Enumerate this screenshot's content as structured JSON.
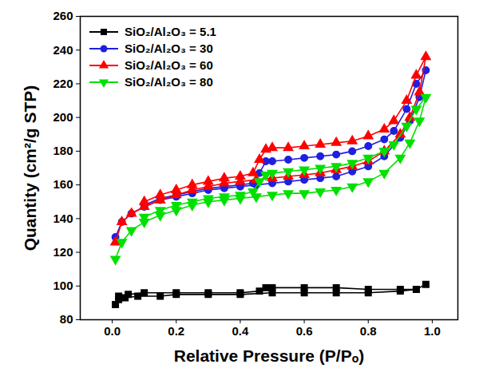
{
  "chart_data": {
    "type": "line",
    "x_label": "Relative Pressure (P/Pₒ)",
    "y_label": "Quantity (cm²/g STP)",
    "xlim": [
      -0.1,
      1.08
    ],
    "ylim": [
      80,
      260
    ],
    "xticks": [
      {
        "value": 0,
        "label": "0.0"
      },
      {
        "value": 0.2,
        "label": "0.2"
      },
      {
        "value": 0.4,
        "label": "0.4"
      },
      {
        "value": 0.6,
        "label": "0.6"
      },
      {
        "value": 0.8,
        "label": "0.8"
      },
      {
        "value": 1,
        "label": "1.0"
      }
    ],
    "yticks": [
      80,
      100,
      120,
      140,
      160,
      180,
      200,
      220,
      240,
      260
    ],
    "legend": "top-left",
    "series": [
      {
        "name": "SiO₂/Al₂O₃ = 5.1",
        "color": "#000000",
        "marker": "square",
        "line_style": "solid",
        "x": [
          0.01,
          0.02,
          0.04,
          0.08,
          0.15,
          0.2,
          0.3,
          0.4,
          0.5,
          0.6,
          0.7,
          0.8,
          0.9,
          0.95,
          0.98,
          0.95,
          0.9,
          0.8,
          0.7,
          0.6,
          0.5,
          0.48,
          0.46,
          0.4,
          0.3,
          0.2,
          0.1,
          0.05,
          0.02
        ],
        "values": [
          89,
          92,
          93,
          94,
          94,
          95,
          95,
          95,
          96,
          96,
          96,
          96,
          97,
          98,
          101,
          98,
          98,
          98,
          99,
          99,
          99,
          99,
          97,
          96,
          96,
          96,
          96,
          95,
          94
        ]
      },
      {
        "name": "SiO₂/Al₂O₃ = 30",
        "color": "#1f1fe0",
        "marker": "circle",
        "line_style": "solid",
        "x": [
          0.01,
          0.03,
          0.06,
          0.1,
          0.15,
          0.2,
          0.25,
          0.3,
          0.35,
          0.4,
          0.45,
          0.5,
          0.55,
          0.6,
          0.65,
          0.7,
          0.75,
          0.8,
          0.85,
          0.9,
          0.93,
          0.96,
          0.98,
          0.95,
          0.92,
          0.88,
          0.85,
          0.8,
          0.75,
          0.7,
          0.65,
          0.6,
          0.55,
          0.5,
          0.48,
          0.46,
          0.44,
          0.4,
          0.35,
          0.3,
          0.25,
          0.2,
          0.15,
          0.1
        ],
        "values": [
          129,
          138,
          143,
          147,
          151,
          153,
          155,
          157,
          158,
          159,
          160,
          161,
          162,
          163,
          164,
          165,
          168,
          171,
          177,
          188,
          198,
          212,
          228,
          220,
          205,
          192,
          187,
          183,
          180,
          178,
          177,
          176,
          175,
          174,
          174,
          167,
          161,
          160,
          159,
          158,
          156,
          154,
          152,
          148
        ]
      },
      {
        "name": "SiO₂/Al₂O₃ = 60",
        "color": "#ff0000",
        "marker": "triangle-up",
        "line_style": "solid",
        "x": [
          0.01,
          0.03,
          0.06,
          0.1,
          0.15,
          0.2,
          0.25,
          0.3,
          0.35,
          0.4,
          0.45,
          0.5,
          0.55,
          0.6,
          0.65,
          0.7,
          0.75,
          0.8,
          0.85,
          0.9,
          0.93,
          0.96,
          0.98,
          0.95,
          0.92,
          0.88,
          0.85,
          0.8,
          0.75,
          0.7,
          0.65,
          0.6,
          0.55,
          0.5,
          0.48,
          0.46,
          0.44,
          0.4,
          0.35,
          0.3,
          0.25,
          0.2,
          0.15,
          0.1
        ],
        "values": [
          126,
          138,
          143,
          147,
          151,
          154,
          157,
          159,
          161,
          162,
          163,
          164,
          165,
          166,
          167,
          169,
          171,
          174,
          180,
          190,
          200,
          215,
          236,
          225,
          210,
          198,
          193,
          189,
          186,
          185,
          184,
          183,
          182,
          182,
          181,
          175,
          167,
          165,
          164,
          162,
          160,
          157,
          154,
          150
        ]
      },
      {
        "name": "SiO₂/Al₂O₃ = 80",
        "color": "#00e000",
        "marker": "triangle-down",
        "line_style": "solid",
        "x": [
          0.01,
          0.03,
          0.06,
          0.1,
          0.15,
          0.2,
          0.25,
          0.3,
          0.35,
          0.4,
          0.45,
          0.5,
          0.55,
          0.6,
          0.65,
          0.7,
          0.75,
          0.8,
          0.85,
          0.9,
          0.93,
          0.96,
          0.98,
          0.95,
          0.92,
          0.88,
          0.85,
          0.8,
          0.75,
          0.7,
          0.65,
          0.6,
          0.55,
          0.5,
          0.48,
          0.46,
          0.44,
          0.4,
          0.35,
          0.3,
          0.25,
          0.2,
          0.15,
          0.1
        ],
        "values": [
          116,
          126,
          133,
          138,
          142,
          145,
          148,
          150,
          151,
          152,
          153,
          154,
          155,
          155,
          156,
          157,
          159,
          162,
          167,
          176,
          185,
          198,
          212,
          205,
          195,
          184,
          180,
          176,
          173,
          171,
          170,
          169,
          168,
          167,
          166,
          162,
          156,
          154,
          153,
          152,
          150,
          148,
          145,
          141
        ]
      }
    ]
  }
}
